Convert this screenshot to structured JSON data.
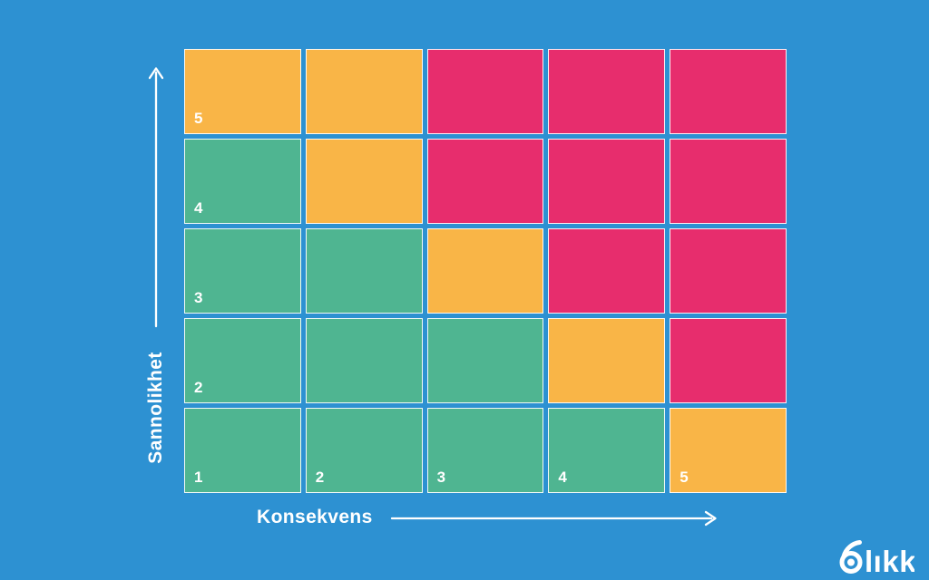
{
  "background_color": "#2D91D2",
  "axes": {
    "x_label": "Konsekvens",
    "y_label": "Sannolikhet"
  },
  "logo": {
    "text": "blikk",
    "text_after_mark": "lıkk"
  },
  "chart_data": {
    "type": "heatmap",
    "title": "",
    "xlabel": "Konsekvens",
    "ylabel": "Sannolikhet",
    "x": [
      1,
      2,
      3,
      4,
      5
    ],
    "y": [
      5,
      4,
      3,
      2,
      1
    ],
    "grid": "5x5 risk matrix, rows listed top (y=5) to bottom (y=1)",
    "cells": [
      [
        "medium",
        "medium",
        "high",
        "high",
        "high"
      ],
      [
        "low",
        "medium",
        "high",
        "high",
        "high"
      ],
      [
        "low",
        "low",
        "medium",
        "high",
        "high"
      ],
      [
        "low",
        "low",
        "low",
        "medium",
        "high"
      ],
      [
        "low",
        "low",
        "low",
        "low",
        "medium"
      ]
    ],
    "cell_labels": [
      [
        "5",
        "",
        "",
        "",
        ""
      ],
      [
        "4",
        "",
        "",
        "",
        ""
      ],
      [
        "3",
        "",
        "",
        "",
        ""
      ],
      [
        "2",
        "",
        "",
        "",
        ""
      ],
      [
        "1",
        "2",
        "3",
        "4",
        "5"
      ]
    ],
    "risk_colors": {
      "low": "#4FB591",
      "medium": "#F9B547",
      "high": "#E72D6D"
    },
    "axis_color": "#FFFFFF",
    "legend_position": "none"
  }
}
